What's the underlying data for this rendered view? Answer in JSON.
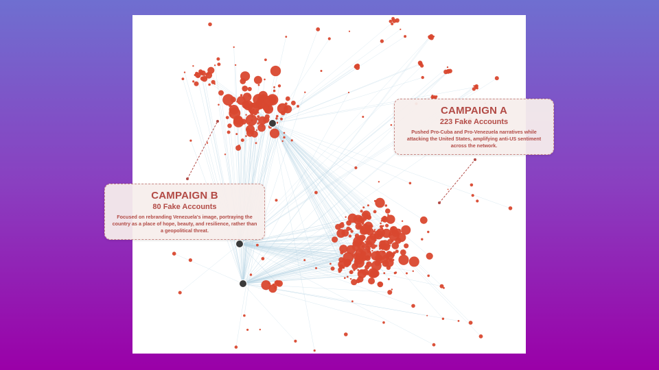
{
  "campaign_a": {
    "title": "CAMPAIGN A",
    "count": "223 Fake Accounts",
    "description": "Pushed Pro-Cuba and Pro-Venezuela narratives while attacking the United States, amplifying anti-US sentiment across the network."
  },
  "campaign_b": {
    "title": "CAMPAIGN B",
    "count": "80 Fake Accounts",
    "description": "Focused on rebranding Venezuela's image, portraying the country as a place of hope, beauty, and resilience, rather than a geopolitical threat."
  },
  "colors": {
    "node": "#d9482f",
    "edge": "#bcd7e6",
    "hub": "#3a3a3a",
    "leader": "#b24a45",
    "callout_text": "#b24a45"
  }
}
